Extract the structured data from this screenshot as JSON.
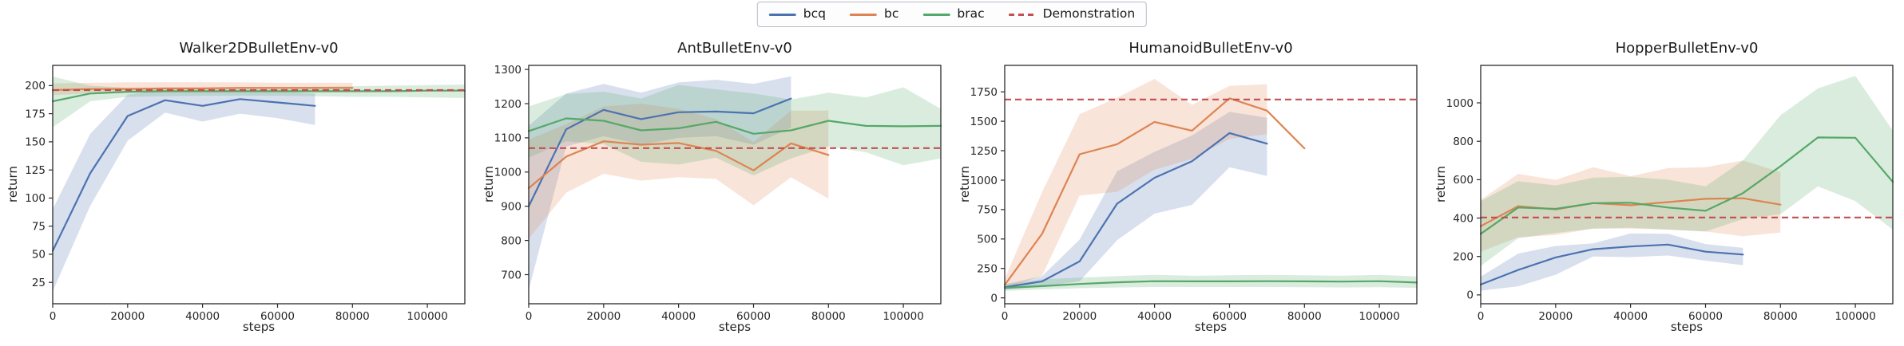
{
  "legend": {
    "items": [
      {
        "label": "bcq",
        "color": "#4C72B0",
        "dashed": false
      },
      {
        "label": "bc",
        "color": "#DD8452",
        "dashed": false
      },
      {
        "label": "brac",
        "color": "#55A868",
        "dashed": false
      },
      {
        "label": "Demonstration",
        "color": "#C44E52",
        "dashed": true
      }
    ]
  },
  "style": {
    "spine_color": "#2a2a2a",
    "tick_color": "#2a2a2a",
    "band_opacity": 0.22,
    "line_width": 2.2
  },
  "chart_data": [
    {
      "type": "line",
      "title": "Walker2DBulletEnv-v0",
      "xlabel": "steps",
      "ylabel": "return",
      "xlim": [
        0,
        110000
      ],
      "ylim": [
        6,
        218
      ],
      "xticks": [
        0,
        20000,
        40000,
        60000,
        80000,
        100000
      ],
      "yticks": [
        25,
        50,
        75,
        100,
        125,
        150,
        175,
        200
      ],
      "demonstration": 196,
      "series": [
        {
          "name": "bcq",
          "color": "#4C72B0",
          "x": [
            0,
            10000,
            20000,
            30000,
            40000,
            50000,
            60000,
            70000
          ],
          "y": [
            53,
            122,
            173,
            187,
            182,
            188,
            185,
            182
          ],
          "lo": [
            17,
            93,
            151,
            176,
            168,
            175,
            171,
            165
          ],
          "hi": [
            90,
            157,
            192,
            196,
            194,
            196,
            195,
            193
          ]
        },
        {
          "name": "bc",
          "color": "#DD8452",
          "x": [
            0,
            10000,
            20000,
            30000,
            40000,
            50000,
            60000,
            70000,
            80000
          ],
          "y": [
            196,
            197,
            197,
            197.5,
            197.5,
            198,
            198,
            198,
            198
          ],
          "lo": [
            191.5,
            193,
            193.5,
            194,
            194,
            194,
            194,
            194,
            194
          ],
          "hi": [
            202,
            202.5,
            203,
            203,
            203,
            203,
            202.5,
            202.5,
            202.5
          ]
        },
        {
          "name": "brac",
          "color": "#55A868",
          "x": [
            0,
            10000,
            20000,
            30000,
            40000,
            50000,
            60000,
            70000,
            80000,
            90000,
            100000,
            110000
          ],
          "y": [
            186,
            193,
            194.5,
            195,
            195,
            195,
            195,
            195,
            195,
            195,
            195.5,
            195.5
          ],
          "lo": [
            163,
            186,
            190,
            190.5,
            191,
            191,
            191,
            190.5,
            190,
            190,
            189.5,
            189
          ],
          "hi": [
            208,
            200,
            198,
            197.5,
            198,
            198.5,
            198.5,
            199,
            199.5,
            200,
            200.5,
            201
          ]
        }
      ]
    },
    {
      "type": "line",
      "title": "AntBulletEnv-v0",
      "xlabel": "steps",
      "ylabel": "return",
      "xlim": [
        0,
        110000
      ],
      "ylim": [
        615,
        1312
      ],
      "xticks": [
        0,
        20000,
        40000,
        60000,
        80000,
        100000
      ],
      "yticks": [
        700,
        800,
        900,
        1000,
        1100,
        1200,
        1300
      ],
      "demonstration": 1070,
      "series": [
        {
          "name": "bcq",
          "color": "#4C72B0",
          "x": [
            0,
            10000,
            20000,
            30000,
            40000,
            50000,
            60000,
            70000
          ],
          "y": [
            900,
            1125,
            1182,
            1155,
            1175,
            1177,
            1172,
            1215
          ],
          "lo": [
            655,
            1075,
            1105,
            1080,
            1100,
            1105,
            1080,
            1130
          ],
          "hi": [
            1135,
            1230,
            1258,
            1232,
            1262,
            1270,
            1258,
            1280
          ]
        },
        {
          "name": "bc",
          "color": "#DD8452",
          "x": [
            0,
            10000,
            20000,
            30000,
            40000,
            50000,
            60000,
            70000,
            80000
          ],
          "y": [
            953,
            1045,
            1090,
            1080,
            1085,
            1062,
            1005,
            1084,
            1050
          ],
          "lo": [
            805,
            940,
            995,
            975,
            985,
            980,
            903,
            985,
            922
          ],
          "hi": [
            1095,
            1140,
            1192,
            1200,
            1185,
            1155,
            1088,
            1180,
            1180
          ]
        },
        {
          "name": "brac",
          "color": "#55A868",
          "x": [
            0,
            10000,
            20000,
            30000,
            40000,
            50000,
            60000,
            70000,
            80000,
            90000,
            100000,
            110000
          ],
          "y": [
            1120,
            1157,
            1150,
            1122,
            1128,
            1147,
            1112,
            1122,
            1150,
            1135,
            1134,
            1135
          ],
          "lo": [
            1042,
            1090,
            1082,
            1030,
            1022,
            1042,
            990,
            1040,
            1075,
            1058,
            1020,
            1040
          ],
          "hi": [
            1192,
            1228,
            1235,
            1215,
            1255,
            1242,
            1230,
            1212,
            1232,
            1218,
            1248,
            1185
          ]
        }
      ]
    },
    {
      "type": "line",
      "title": "HumanoidBulletEnv-v0",
      "xlabel": "steps",
      "ylabel": "return",
      "xlim": [
        0,
        110000
      ],
      "ylim": [
        -50,
        1975
      ],
      "xticks": [
        0,
        20000,
        40000,
        60000,
        80000,
        100000
      ],
      "yticks": [
        0,
        250,
        500,
        750,
        1000,
        1250,
        1500,
        1750
      ],
      "demonstration": 1685,
      "series": [
        {
          "name": "bcq",
          "color": "#4C72B0",
          "x": [
            0,
            10000,
            20000,
            30000,
            40000,
            50000,
            60000,
            70000
          ],
          "y": [
            90,
            140,
            310,
            800,
            1020,
            1160,
            1400,
            1310
          ],
          "lo": [
            70,
            95,
            140,
            490,
            715,
            790,
            1110,
            1035
          ],
          "hi": [
            115,
            185,
            495,
            1075,
            1240,
            1380,
            1580,
            1530
          ]
        },
        {
          "name": "bc",
          "color": "#DD8452",
          "x": [
            0,
            10000,
            20000,
            30000,
            40000,
            50000,
            60000,
            70000,
            80000
          ],
          "y": [
            110,
            545,
            1220,
            1305,
            1495,
            1420,
            1695,
            1590,
            1270
          ],
          "band_x": [
            0,
            10000,
            20000,
            30000,
            40000,
            50000,
            60000,
            70000
          ],
          "lo": [
            75,
            190,
            870,
            900,
            1090,
            1180,
            1350,
            1390
          ],
          "hi": [
            160,
            900,
            1560,
            1700,
            1860,
            1640,
            1800,
            1815
          ]
        },
        {
          "name": "brac",
          "color": "#55A868",
          "x": [
            0,
            10000,
            20000,
            30000,
            40000,
            50000,
            60000,
            70000,
            80000,
            90000,
            100000,
            110000
          ],
          "y": [
            85,
            100,
            118,
            132,
            142,
            140,
            140,
            142,
            140,
            138,
            142,
            130
          ],
          "lo": [
            60,
            72,
            82,
            88,
            92,
            92,
            92,
            92,
            90,
            88,
            90,
            85
          ],
          "hi": [
            112,
            158,
            172,
            185,
            196,
            188,
            192,
            196,
            192,
            188,
            196,
            182
          ]
        }
      ]
    },
    {
      "type": "line",
      "title": "HopperBulletEnv-v0",
      "xlabel": "steps",
      "ylabel": "return",
      "xlim": [
        0,
        110000
      ],
      "ylim": [
        -46,
        1195
      ],
      "xticks": [
        0,
        20000,
        40000,
        60000,
        80000,
        100000
      ],
      "yticks": [
        0,
        200,
        400,
        600,
        800,
        1000
      ],
      "demonstration": 403,
      "series": [
        {
          "name": "bcq",
          "color": "#4C72B0",
          "x": [
            0,
            10000,
            20000,
            30000,
            40000,
            50000,
            60000,
            70000
          ],
          "y": [
            54,
            130,
            195,
            238,
            252,
            262,
            225,
            210
          ],
          "lo": [
            22,
            45,
            105,
            200,
            197,
            205,
            178,
            155
          ],
          "hi": [
            95,
            215,
            255,
            268,
            320,
            318,
            265,
            245
          ]
        },
        {
          "name": "bc",
          "color": "#DD8452",
          "x": [
            0,
            10000,
            20000,
            30000,
            40000,
            50000,
            60000,
            70000,
            80000
          ],
          "y": [
            358,
            462,
            445,
            478,
            467,
            483,
            500,
            503,
            470
          ],
          "lo": [
            225,
            300,
            312,
            345,
            345,
            340,
            330,
            305,
            325
          ],
          "hi": [
            495,
            630,
            598,
            665,
            618,
            660,
            665,
            700,
            640
          ]
        },
        {
          "name": "brac",
          "color": "#55A868",
          "x": [
            0,
            10000,
            20000,
            30000,
            40000,
            50000,
            60000,
            70000,
            80000,
            90000,
            100000,
            110000
          ],
          "y": [
            318,
            455,
            448,
            478,
            480,
            455,
            438,
            530,
            670,
            820,
            818,
            588
          ],
          "lo": [
            150,
            295,
            322,
            345,
            350,
            340,
            330,
            395,
            420,
            565,
            488,
            340
          ],
          "hi": [
            488,
            592,
            570,
            610,
            615,
            600,
            565,
            700,
            935,
            1075,
            1140,
            855
          ]
        }
      ]
    }
  ]
}
